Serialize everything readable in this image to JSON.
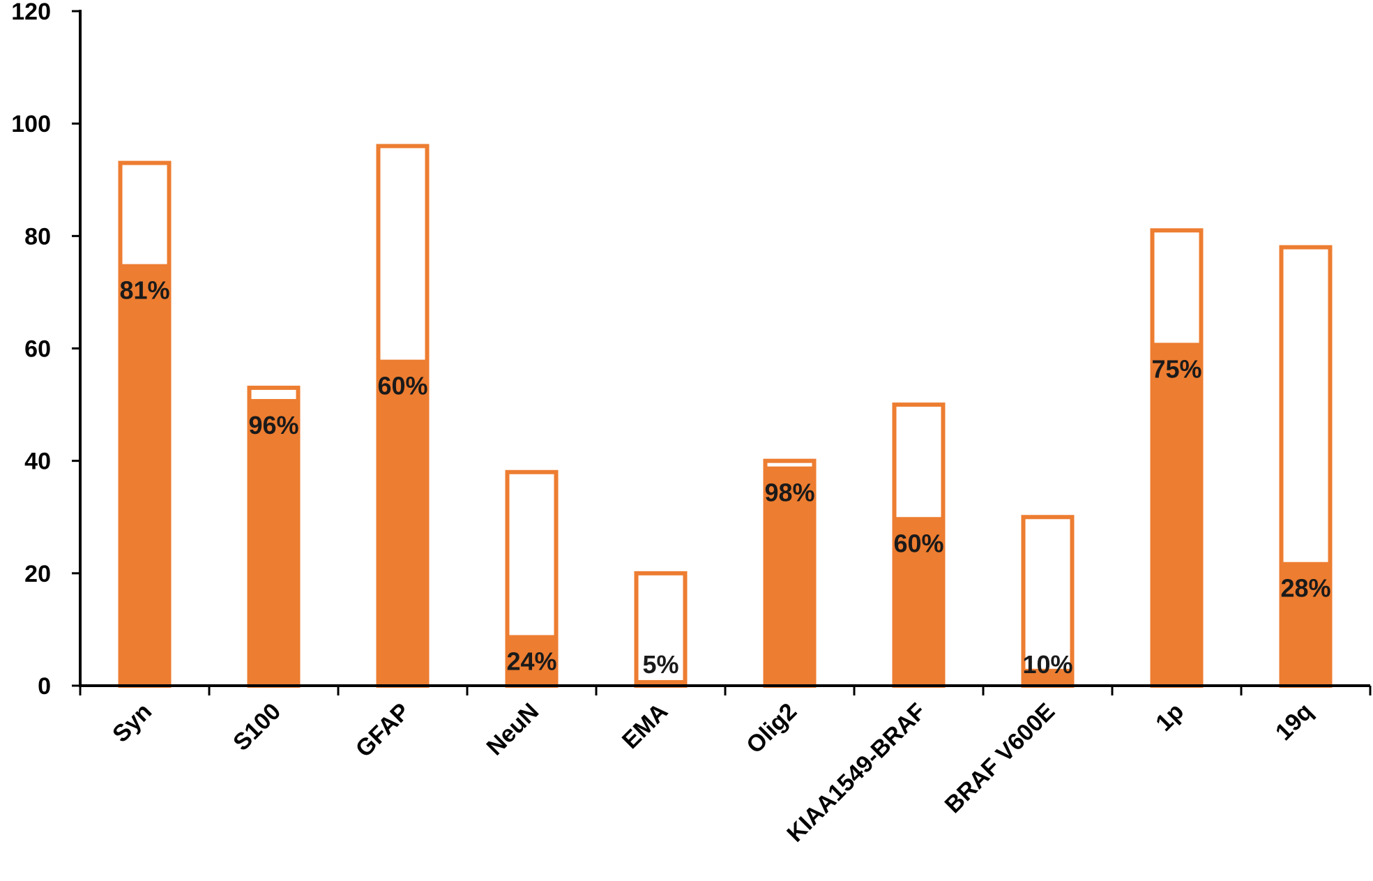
{
  "chart_data": {
    "type": "bar",
    "categories": [
      "Syn",
      "S100",
      "GFAP",
      "NeuN",
      "EMA",
      "Olig2",
      "KIAA1549-BRAF",
      "BRAF V600E",
      "1p",
      "19q"
    ],
    "series": [
      {
        "values": [
          93,
          53,
          96,
          38,
          20,
          40,
          50,
          30,
          81,
          78
        ]
      },
      {
        "values": [
          75,
          51,
          58,
          9,
          1,
          39,
          30,
          3,
          61,
          22
        ]
      }
    ],
    "data_labels": [
      "81%",
      "96%",
      "60%",
      "24%",
      "5%",
      "98%",
      "60%",
      "10%",
      "75%",
      "28%"
    ],
    "ylim": [
      0,
      120
    ],
    "yticks": [
      "0",
      "20",
      "40",
      "60",
      "80",
      "100",
      "120"
    ],
    "title": "",
    "xlabel": "",
    "ylabel": "",
    "grid": false,
    "legend": "none",
    "colors": {
      "bar": "#ED7D31",
      "axis": "#000000",
      "text": "#1a1a1a"
    }
  }
}
